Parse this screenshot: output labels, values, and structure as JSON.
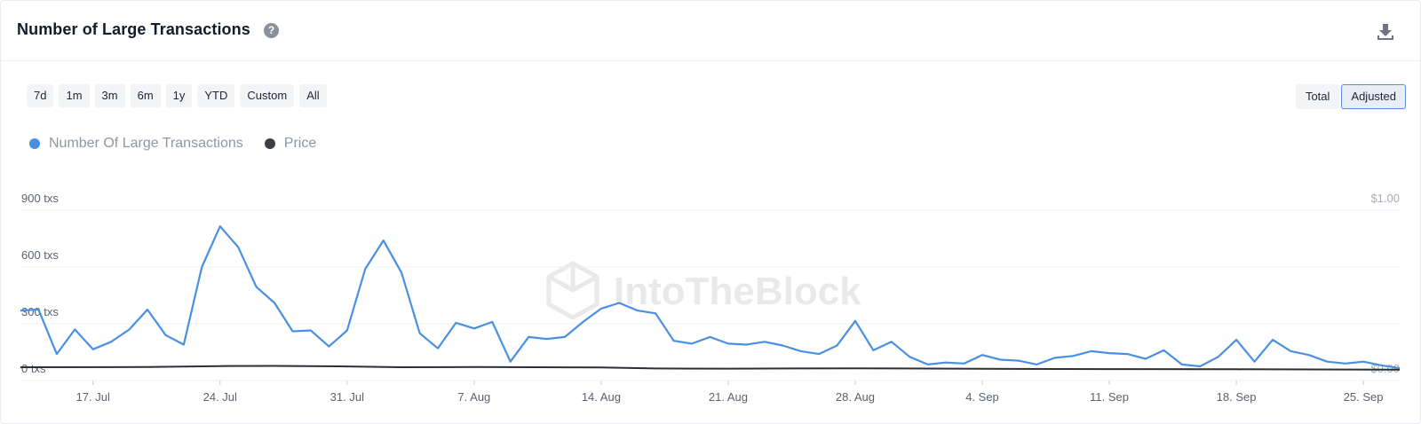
{
  "header": {
    "title": "Number of Large Transactions",
    "help_icon": "question-circle-icon",
    "download_icon": "download-icon"
  },
  "range_buttons": [
    "7d",
    "1m",
    "3m",
    "6m",
    "1y",
    "YTD",
    "Custom",
    "All"
  ],
  "mode_buttons": [
    {
      "label": "Total",
      "active": false
    },
    {
      "label": "Adjusted",
      "active": true
    }
  ],
  "watermark": "IntoTheBlock",
  "colors": {
    "transactions": "#4a90e2",
    "price": "#2b2f36",
    "grid": "#eef0f3",
    "axis_text": "#5b6170",
    "right_axis_text": "#a6adb8"
  },
  "chart_data": {
    "type": "line",
    "title": "Number of Large Transactions",
    "legend_placement": "top-left",
    "grid": true,
    "x_ticks": [
      "17. Jul",
      "24. Jul",
      "31. Jul",
      "7. Aug",
      "14. Aug",
      "21. Aug",
      "28. Aug",
      "4. Sep",
      "11. Sep",
      "18. Sep",
      "25. Sep"
    ],
    "x_range": [
      "2023-07-13",
      "2023-09-27"
    ],
    "y_left": {
      "ticks": [
        "0 txs",
        "300 txs",
        "600 txs",
        "900 txs"
      ],
      "range": [
        0,
        900
      ]
    },
    "y_right": {
      "ticks": [
        "$0.00",
        "$1.00"
      ],
      "range": [
        0,
        1
      ]
    },
    "series": [
      {
        "name": "Number Of Large Transactions",
        "axis": "left",
        "x": [
          "2023-07-13",
          "2023-07-14",
          "2023-07-15",
          "2023-07-16",
          "2023-07-17",
          "2023-07-18",
          "2023-07-19",
          "2023-07-20",
          "2023-07-21",
          "2023-07-22",
          "2023-07-23",
          "2023-07-24",
          "2023-07-25",
          "2023-07-26",
          "2023-07-27",
          "2023-07-28",
          "2023-07-29",
          "2023-07-30",
          "2023-07-31",
          "2023-08-01",
          "2023-08-02",
          "2023-08-03",
          "2023-08-04",
          "2023-08-05",
          "2023-08-06",
          "2023-08-07",
          "2023-08-08",
          "2023-08-09",
          "2023-08-10",
          "2023-08-11",
          "2023-08-12",
          "2023-08-13",
          "2023-08-14",
          "2023-08-15",
          "2023-08-16",
          "2023-08-17",
          "2023-08-18",
          "2023-08-19",
          "2023-08-20",
          "2023-08-21",
          "2023-08-22",
          "2023-08-23",
          "2023-08-24",
          "2023-08-25",
          "2023-08-26",
          "2023-08-27",
          "2023-08-28",
          "2023-08-29",
          "2023-08-30",
          "2023-08-31",
          "2023-09-01",
          "2023-09-02",
          "2023-09-03",
          "2023-09-04",
          "2023-09-05",
          "2023-09-06",
          "2023-09-07",
          "2023-09-08",
          "2023-09-09",
          "2023-09-10",
          "2023-09-11",
          "2023-09-12",
          "2023-09-13",
          "2023-09-14",
          "2023-09-15",
          "2023-09-16",
          "2023-09-17",
          "2023-09-18",
          "2023-09-19",
          "2023-09-20",
          "2023-09-21",
          "2023-09-22",
          "2023-09-23",
          "2023-09-24",
          "2023-09-25",
          "2023-09-26",
          "2023-09-27"
        ],
        "values": [
          370,
          375,
          140,
          270,
          165,
          205,
          270,
          375,
          240,
          190,
          600,
          815,
          705,
          495,
          410,
          260,
          265,
          180,
          265,
          590,
          740,
          570,
          250,
          170,
          305,
          275,
          310,
          100,
          230,
          220,
          230,
          310,
          380,
          410,
          370,
          355,
          210,
          195,
          230,
          195,
          190,
          205,
          185,
          155,
          140,
          185,
          315,
          160,
          205,
          125,
          85,
          95,
          90,
          135,
          110,
          105,
          85,
          120,
          130,
          155,
          145,
          140,
          115,
          160,
          85,
          75,
          125,
          215,
          100,
          215,
          155,
          135,
          100,
          90,
          100,
          80,
          65
        ],
        "color": "#4a90e2"
      },
      {
        "name": "Price",
        "axis": "right",
        "x": [
          "2023-07-13",
          "2023-07-20",
          "2023-07-24",
          "2023-07-27",
          "2023-07-31",
          "2023-08-03",
          "2023-08-07",
          "2023-08-14",
          "2023-08-17",
          "2023-08-21",
          "2023-08-28",
          "2023-09-04",
          "2023-09-11",
          "2023-09-18",
          "2023-09-27"
        ],
        "values": [
          0.078,
          0.079,
          0.085,
          0.086,
          0.083,
          0.078,
          0.079,
          0.077,
          0.071,
          0.07,
          0.072,
          0.069,
          0.067,
          0.066,
          0.064
        ],
        "color": "#2b2f36"
      }
    ]
  }
}
